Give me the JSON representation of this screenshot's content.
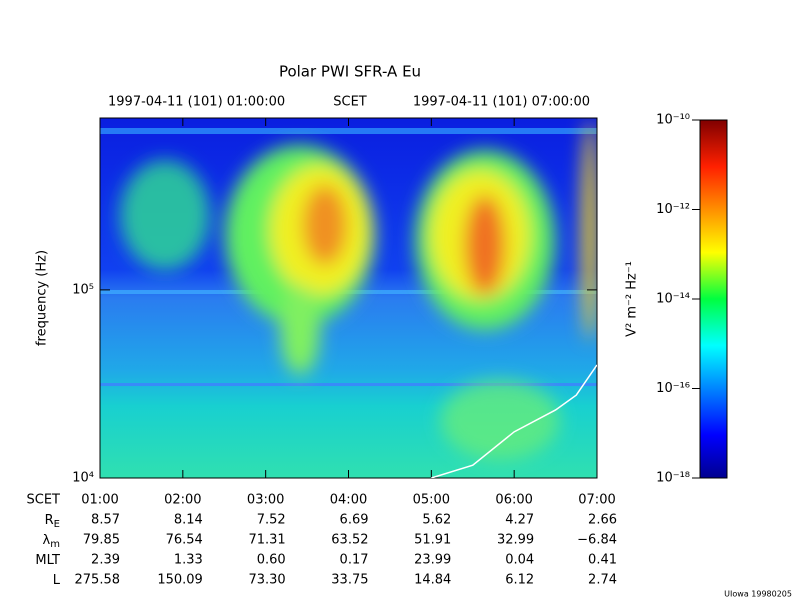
{
  "chart_data": {
    "type": "spectrogram",
    "title": "Polar PWI SFR-A Eu",
    "header": {
      "start": "1997-04-11 (101) 01:00:00",
      "scet": "SCET",
      "end": "1997-04-11 (101) 07:00:00"
    },
    "y_label": "frequency (Hz)",
    "log_y": true,
    "ylim": [
      10000,
      820000
    ],
    "yticks": [
      {
        "value": 10000,
        "label": "10⁴"
      },
      {
        "value": 100000,
        "label": "10⁵"
      }
    ],
    "xlim": [
      1,
      7
    ],
    "xticks": [
      {
        "value": 1,
        "label": "01:00"
      },
      {
        "value": 2,
        "label": "02:00"
      },
      {
        "value": 3,
        "label": "03:00"
      },
      {
        "value": 4,
        "label": "04:00"
      },
      {
        "value": 5,
        "label": "05:00"
      },
      {
        "value": 6,
        "label": "06:00"
      },
      {
        "value": 7,
        "label": "07:00"
      }
    ],
    "line": {
      "color": "#ffffff",
      "x": [
        5.0,
        5.5,
        6.0,
        6.5,
        6.75,
        7.0
      ],
      "values": [
        10000,
        11700,
        17600,
        23000,
        27600,
        39900
      ]
    },
    "ephemeris": {
      "scet_label": "SCET",
      "rows": [
        {
          "label": {
            "text": "R",
            "sub": "E"
          },
          "values": [
            "8.57",
            "8.14",
            "7.52",
            "6.69",
            "5.62",
            "4.27",
            "2.66"
          ]
        },
        {
          "label": {
            "text": "λ",
            "sub": "m"
          },
          "values": [
            "79.85",
            "76.54",
            "71.31",
            "63.52",
            "51.91",
            "32.99",
            "−6.84"
          ]
        },
        {
          "label": {
            "text": "MLT",
            "sub": ""
          },
          "values": [
            "2.39",
            "1.33",
            "0.60",
            "0.17",
            "23.99",
            "0.04",
            "0.41"
          ]
        },
        {
          "label": {
            "text": "L",
            "sub": ""
          },
          "values": [
            "275.58",
            "150.09",
            "73.30",
            "33.75",
            "14.84",
            "6.12",
            "2.74"
          ]
        }
      ]
    },
    "colorbar": {
      "label": "V² m⁻² Hz⁻¹",
      "log": true,
      "lim": [
        1e-18,
        1e-10
      ],
      "ticks": [
        {
          "value": 1e-18,
          "label": "10⁻¹⁸"
        },
        {
          "value": 1e-16,
          "label": "10⁻¹⁶"
        },
        {
          "value": 1e-14,
          "label": "10⁻¹⁴"
        },
        {
          "value": 1e-12,
          "label": "10⁻¹²"
        },
        {
          "value": 1e-10,
          "label": "10⁻¹⁰"
        }
      ]
    },
    "footer": "UIowa 19980205"
  }
}
